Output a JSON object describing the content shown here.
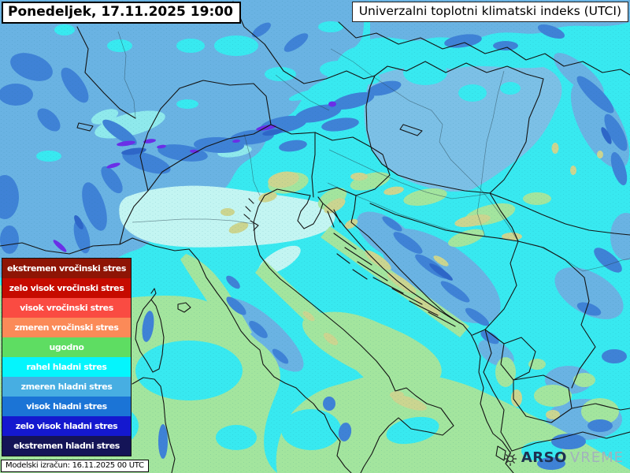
{
  "header": {
    "date_label": "Ponedeljek, 17.11.2025 19:00",
    "title": "Univerzalni toplotni klimatski indeks (UTCI)"
  },
  "legend": {
    "text_color": "#ffffff",
    "items": [
      {
        "label": "ekstremen vročinski stres",
        "color": "#8e1505"
      },
      {
        "label": "zelo visok vročinski stres",
        "color": "#c60b00"
      },
      {
        "label": "visok vročinski stres",
        "color": "#fa4b42"
      },
      {
        "label": "zmeren vročinski stres",
        "color": "#fb8a58"
      },
      {
        "label": "ugodno",
        "color": "#5edd62"
      },
      {
        "label": "rahel hladni stres",
        "color": "#04f5fd"
      },
      {
        "label": "zmeren hladni stres",
        "color": "#47aee2"
      },
      {
        "label": "visok hladni stres",
        "color": "#1b74d6"
      },
      {
        "label": "zelo visok hladni stres",
        "color": "#1418cf"
      },
      {
        "label": "ekstremen hladni stres",
        "color": "#141457"
      }
    ]
  },
  "footer": {
    "model_run": "Modelski izračun: 16.11.2025 00 UTC",
    "brand_bold": "ARSO",
    "brand_light": "VREME",
    "brand_icon": "sun-icon"
  },
  "map": {
    "palette": {
      "base_cyan": "#38e9f0",
      "light_blue": "#6ab3e3",
      "hungary_blue": "#7cc0e6",
      "dark_blue": "#3f82d6",
      "deep_blue": "#2e66c8",
      "violet": "#6b2ee8",
      "pale_cyan": "#8fe9ec",
      "valley_cyan": "#c3f5f2",
      "pale_green": "#a3e59e",
      "khaki": "#cbd590",
      "border_line": "#141414",
      "river_line": "#26424e"
    }
  }
}
